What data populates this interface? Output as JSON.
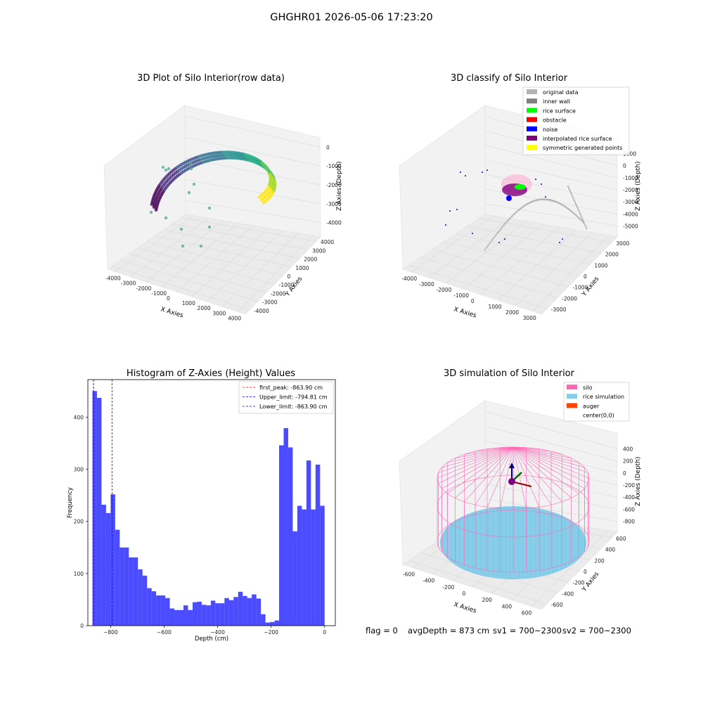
{
  "figure": {
    "suptitle": "GHGHR01 2026-05-06 17:23:20",
    "footer": {
      "flag": "flag = 0",
      "avg_depth": "avgDepth = 873 cm",
      "sv1": "sv1 = 700~2300",
      "sv2": "sv2 = 700~2300"
    }
  },
  "panels": {
    "raw": {
      "title": "3D Plot of Silo Interior(row data)",
      "xlabel": "X Axies",
      "ylabel": "Y Axies",
      "zlabel": "Z Axies (Depth)",
      "xticks": [
        "-4000",
        "-3000",
        "-2000",
        "-1000",
        "0",
        "1000",
        "2000",
        "3000",
        "4000"
      ],
      "yticks": [
        "-4000",
        "-3000",
        "-2000",
        "-1000",
        "0",
        "1000",
        "2000",
        "3000",
        "4000"
      ],
      "zticks": [
        "0",
        "-1000",
        "-2000",
        "-3000",
        "-4000"
      ]
    },
    "classify": {
      "title": "3D classify of Silo Interior",
      "xlabel": "X Axies",
      "ylabel": "Y Axies",
      "zlabel": "Z Axies (Depth)",
      "xticks": [
        "-4000",
        "-3000",
        "-2000",
        "-1000",
        "0",
        "1000",
        "2000",
        "3000"
      ],
      "yticks": [
        "-3000",
        "-2000",
        "-1000",
        "0",
        "1000",
        "2000",
        "3000"
      ],
      "zticks": [
        "1000",
        "0",
        "-1000",
        "-2000",
        "-3000",
        "-4000",
        "-5000"
      ],
      "legend": [
        {
          "label": "original data",
          "color": "#b3b3b3"
        },
        {
          "label": "inner wall",
          "color": "#808080"
        },
        {
          "label": "rice surface",
          "color": "#00ff00"
        },
        {
          "label": "obstacle",
          "color": "#ff0000"
        },
        {
          "label": "noise",
          "color": "#0000ff"
        },
        {
          "label": "interpolated rice surface",
          "color": "#800080"
        },
        {
          "label": "symmetric generated points",
          "color": "#ffff00"
        }
      ]
    },
    "simulation": {
      "title": "3D simulation of Silo Interior",
      "xlabel": "X Axies",
      "ylabel": "Y Axies",
      "zlabel": "Z Axies (Depth)",
      "xticks": [
        "-600",
        "-400",
        "-200",
        "0",
        "200",
        "400",
        "600"
      ],
      "yticks": [
        "-600",
        "-400",
        "-200",
        "0",
        "200",
        "400",
        "600"
      ],
      "zticks": [
        "400",
        "200",
        "0",
        "-200",
        "-400",
        "-600",
        "-800"
      ],
      "legend": [
        {
          "label": "silo",
          "color": "#ff69b4"
        },
        {
          "label": "rice simulation",
          "color": "#87ceeb"
        },
        {
          "label": "auger",
          "color": "#ff4500"
        },
        {
          "label": "center(0,0)",
          "color": ""
        }
      ]
    }
  },
  "chart_data": {
    "type": "bar",
    "title": "Histogram of Z-Axies (Height) Values",
    "xlabel": "Depth (cm)",
    "ylabel": "Frequency",
    "xlim": [
      -885,
      40
    ],
    "ylim": [
      0,
      472
    ],
    "xticks": [
      -800,
      -600,
      -400,
      -200,
      0
    ],
    "yticks": [
      0,
      100,
      200,
      300,
      400
    ],
    "bar_color": "#0000ff",
    "bin_edges_range": [
      -868,
      0
    ],
    "counts": [
      450,
      437,
      232,
      216,
      252,
      184,
      150,
      150,
      131,
      131,
      108,
      96,
      72,
      66,
      58,
      58,
      53,
      33,
      30,
      30,
      39,
      30,
      45,
      46,
      40,
      39,
      48,
      43,
      43,
      53,
      49,
      55,
      65,
      57,
      53,
      60,
      52,
      22,
      6,
      7,
      10,
      346,
      379,
      342,
      181,
      230,
      223,
      317,
      223,
      309,
      230
    ],
    "vlines": [
      {
        "label": "first_peak: -863.90 cm",
        "x": -863.9,
        "color": "#ff0000"
      },
      {
        "label": "Upper_limit: -794.81 cm",
        "x": -794.81,
        "color": "#0000ff"
      },
      {
        "label": "Lower_limit: -863.90 cm",
        "x": -863.9,
        "color": "#0000ff"
      }
    ]
  }
}
